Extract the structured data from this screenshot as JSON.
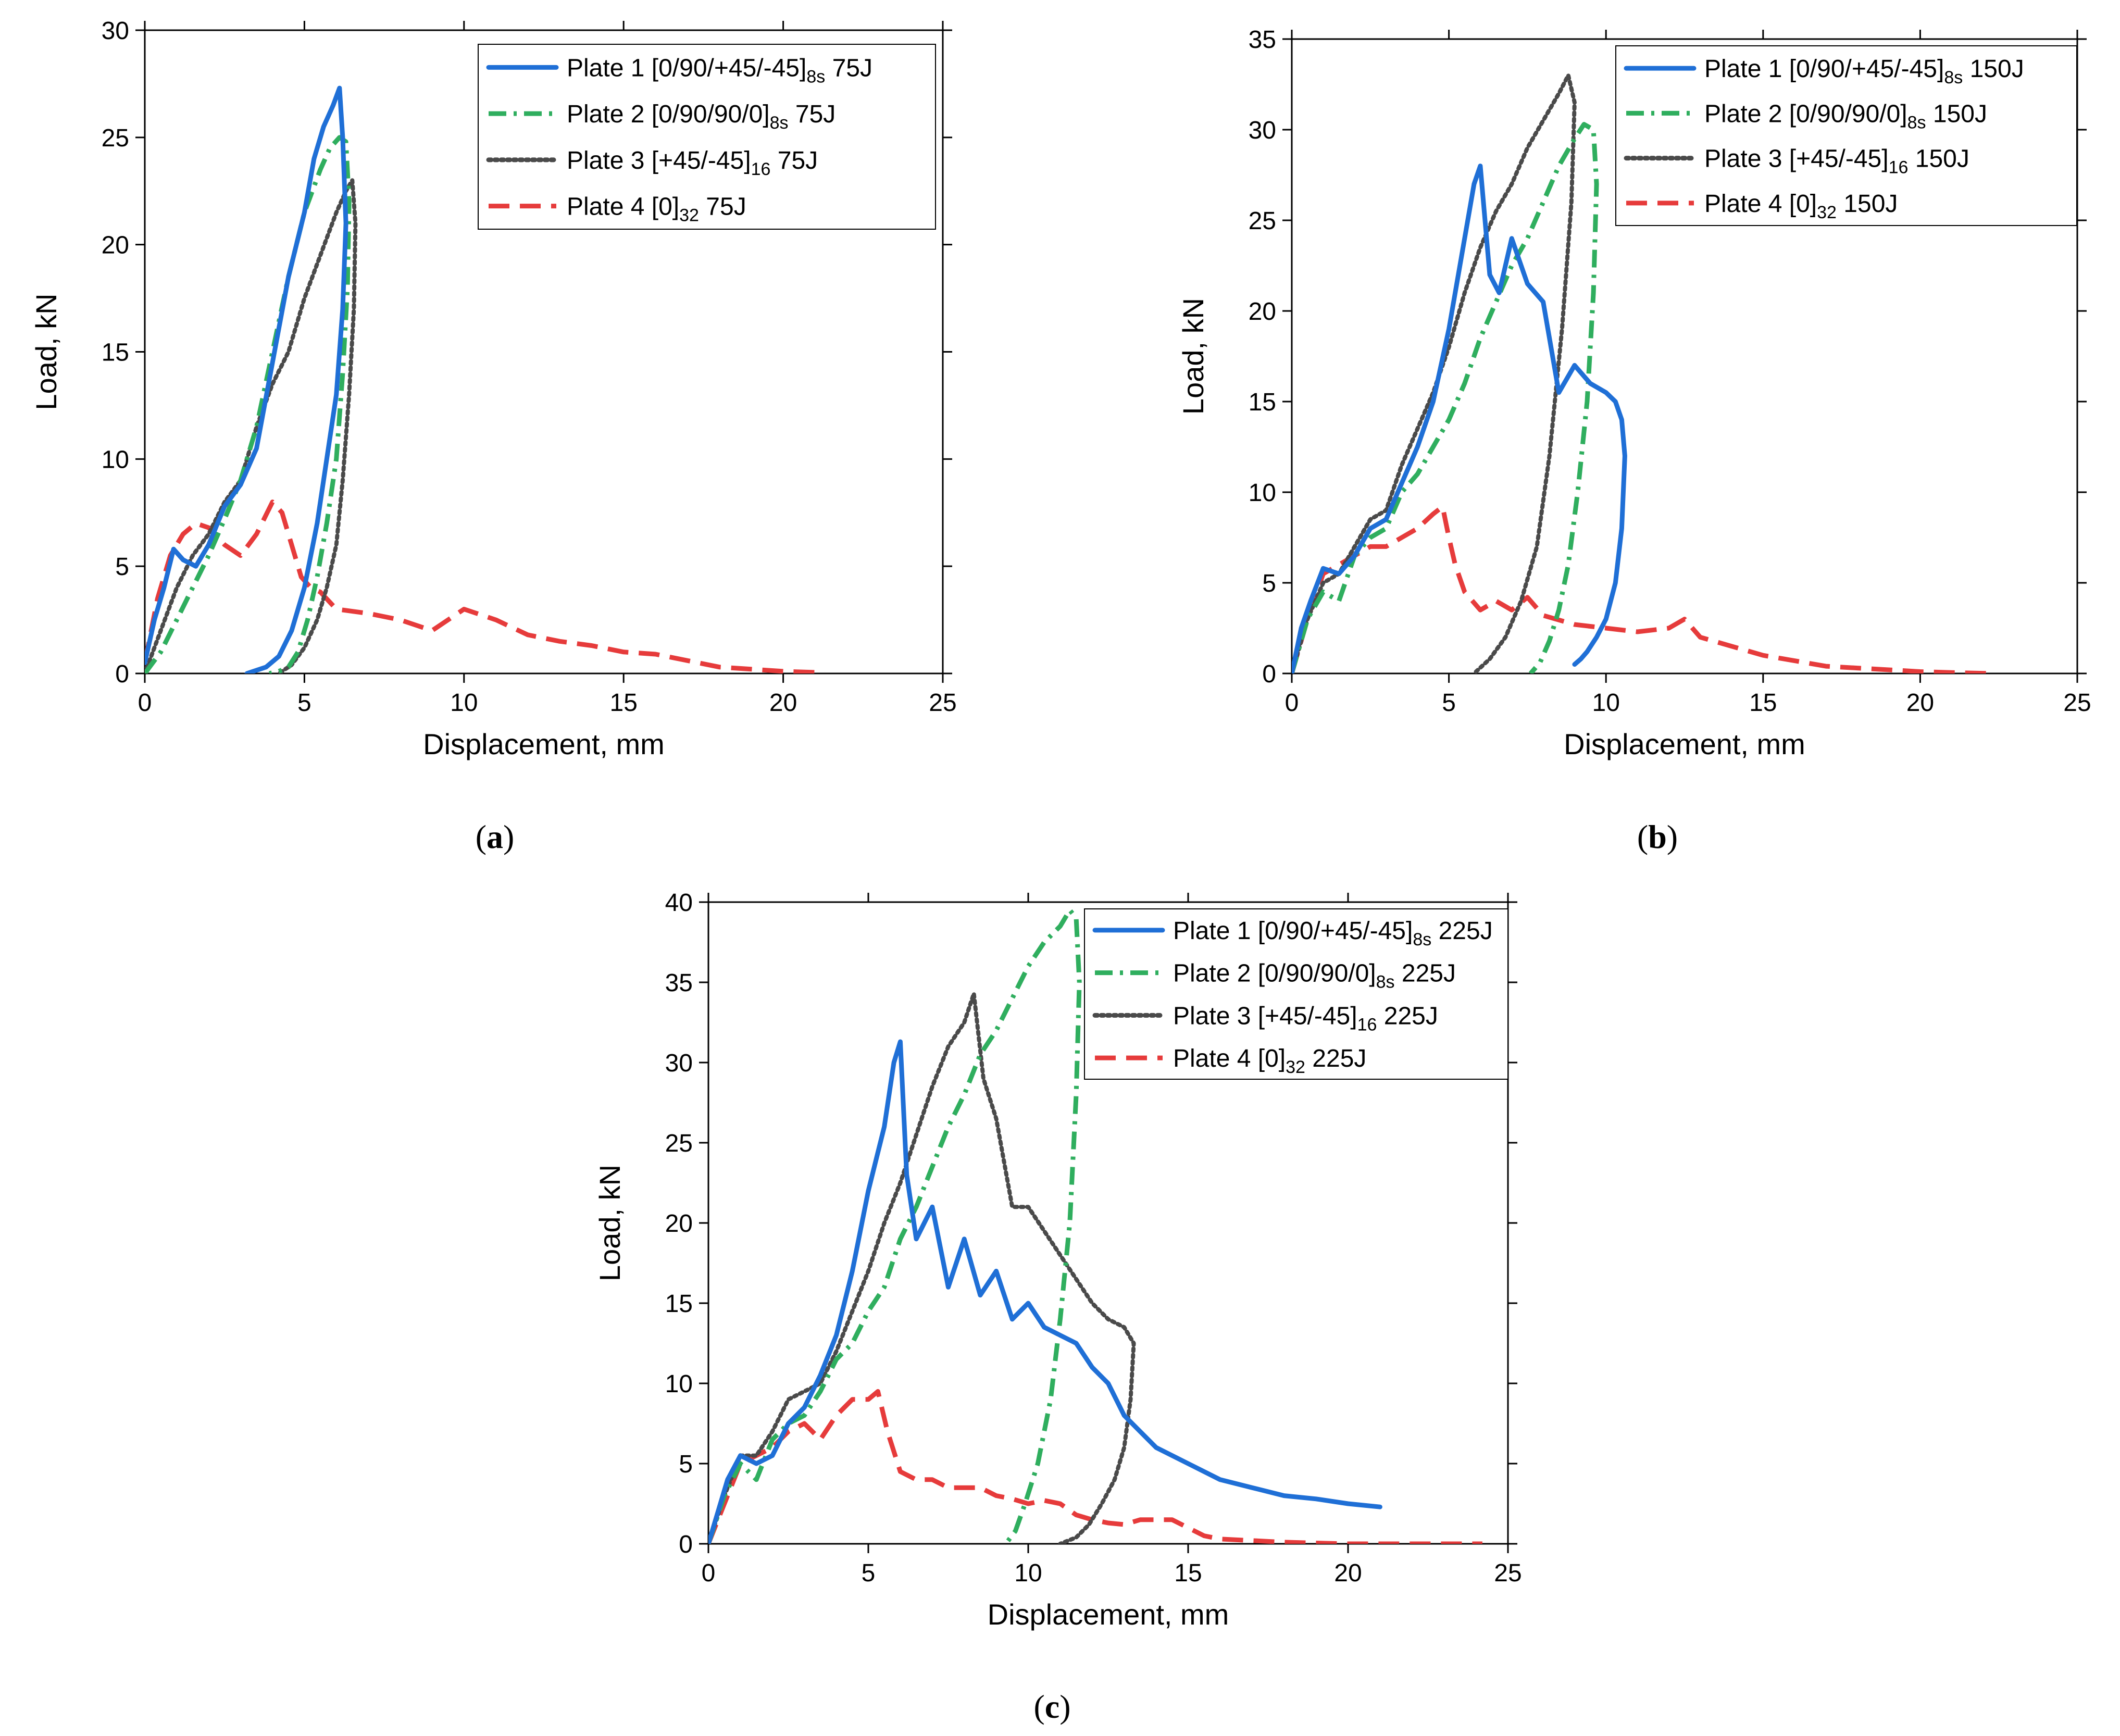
{
  "figure": {
    "captions": [
      "a",
      "b",
      "c"
    ]
  },
  "colors": {
    "plate1": "#1f6fd6",
    "plate2": "#2fae5e",
    "plate3": "#4a4a4a",
    "plate4": "#e63b3b",
    "axis": "#000000"
  },
  "chart_data": [
    {
      "panel": "a",
      "type": "line",
      "xlabel": "Displacement, mm",
      "ylabel": "Load, kN",
      "xlim": [
        0,
        25
      ],
      "ylim": [
        0,
        30
      ],
      "xticks": [
        0,
        5,
        10,
        15,
        20,
        25
      ],
      "yticks": [
        0,
        5,
        10,
        15,
        20,
        25,
        30
      ],
      "legend_position": "top-right",
      "series": [
        {
          "key": "plate1",
          "name": "Plate 1 [0/90/+45/-45]",
          "sub": "8s",
          "suffix": " 75J",
          "dash": "solid",
          "x": [
            0,
            0.3,
            0.6,
            0.9,
            1.2,
            1.6,
            2.0,
            2.5,
            3.0,
            3.5,
            4.0,
            4.5,
            5.0,
            5.3,
            5.6,
            5.9,
            6.1,
            6.2,
            6.3,
            6.2,
            6.0,
            5.7,
            5.4,
            5.0,
            4.6,
            4.2,
            3.8,
            3.4,
            3.2
          ],
          "y": [
            0.5,
            2.5,
            4.0,
            5.8,
            5.3,
            5.0,
            6.0,
            7.8,
            8.8,
            10.5,
            14.5,
            18.5,
            21.5,
            24.0,
            25.5,
            26.5,
            27.3,
            25.0,
            21.0,
            17.0,
            13.0,
            10.0,
            7.0,
            4.0,
            2.0,
            0.8,
            0.3,
            0.1,
            0
          ]
        },
        {
          "key": "plate2",
          "name": "Plate 2 [0/90/90/0]",
          "sub": "8s",
          "suffix": " 75J",
          "dash": "dashdot",
          "x": [
            0,
            0.5,
            1.0,
            1.5,
            2.0,
            2.5,
            3.0,
            3.5,
            4.0,
            4.5,
            5.0,
            5.5,
            5.8,
            6.1,
            6.3,
            6.4,
            6.35,
            6.2,
            6.0,
            5.7,
            5.4,
            5.1,
            4.8,
            4.5,
            4.2,
            3.9
          ],
          "y": [
            0,
            1.0,
            2.5,
            4.0,
            5.5,
            7.2,
            9.0,
            11.5,
            15.0,
            18.5,
            21.5,
            23.5,
            24.5,
            25.0,
            24.8,
            22.0,
            18.0,
            14.0,
            10.0,
            7.0,
            4.5,
            2.5,
            1.0,
            0.3,
            0.1,
            0
          ]
        },
        {
          "key": "plate3",
          "name": "Plate 3 [+45/-45]",
          "sub": "16",
          "suffix": " 75J",
          "dash": "dotted",
          "x": [
            0,
            0.5,
            1.0,
            1.5,
            2.0,
            2.5,
            3.0,
            3.5,
            4.0,
            4.5,
            5.0,
            5.5,
            6.0,
            6.3,
            6.5,
            6.6,
            6.55,
            6.4,
            6.2,
            6.0,
            5.7,
            5.4,
            5.0,
            4.6,
            4.2
          ],
          "y": [
            0,
            2.0,
            4.0,
            5.5,
            6.5,
            8.0,
            9.0,
            11.5,
            13.5,
            15.0,
            17.5,
            19.5,
            21.5,
            22.5,
            23.0,
            21.0,
            17.0,
            13.0,
            9.0,
            6.0,
            4.0,
            2.5,
            1.2,
            0.4,
            0
          ]
        },
        {
          "key": "plate4",
          "name": "Plate 4 [0]",
          "sub": "32",
          "suffix": " 75J",
          "dash": "dashed",
          "x": [
            0,
            0.4,
            0.8,
            1.2,
            1.6,
            2.0,
            2.5,
            3.0,
            3.5,
            4.0,
            4.3,
            4.6,
            4.9,
            5.2,
            5.5,
            6,
            7,
            8,
            9,
            10,
            11,
            12,
            13,
            14,
            15,
            16,
            17,
            18,
            19,
            20,
            21,
            21.3
          ],
          "y": [
            0.5,
            3.5,
            5.5,
            6.5,
            7.0,
            6.8,
            6.0,
            5.5,
            6.5,
            8.0,
            7.5,
            6.0,
            4.5,
            4.0,
            3.8,
            3.0,
            2.8,
            2.5,
            2.0,
            3.0,
            2.5,
            1.8,
            1.5,
            1.3,
            1.0,
            0.9,
            0.6,
            0.3,
            0.2,
            0.1,
            0.05,
            0
          ]
        }
      ]
    },
    {
      "panel": "b",
      "type": "line",
      "xlabel": "Displacement, mm",
      "ylabel": "Load, kN",
      "xlim": [
        0,
        25
      ],
      "ylim": [
        0,
        35
      ],
      "xticks": [
        0,
        5,
        10,
        15,
        20,
        25
      ],
      "yticks": [
        0,
        5,
        10,
        15,
        20,
        25,
        30,
        35
      ],
      "legend_position": "top-right",
      "series": [
        {
          "key": "plate1",
          "name": "Plate 1 [0/90/+45/-45]",
          "sub": "8s",
          "suffix": " 150J",
          "dash": "solid",
          "x": [
            0,
            0.3,
            0.6,
            1.0,
            1.5,
            2.0,
            2.5,
            3.0,
            3.5,
            4.0,
            4.5,
            5.0,
            5.5,
            5.8,
            6.0,
            6.3,
            6.6,
            7.0,
            7.5,
            8.0,
            8.5,
            9.0,
            9.5,
            10.0,
            10.3,
            10.5,
            10.6,
            10.5,
            10.3,
            10.0,
            9.7,
            9.4,
            9.2,
            9.0
          ],
          "y": [
            0,
            2.5,
            4.0,
            5.8,
            5.5,
            6.5,
            8.0,
            8.5,
            10.5,
            12.5,
            15.0,
            19.0,
            24.0,
            27.0,
            28.0,
            22.0,
            21.0,
            24.0,
            21.5,
            20.5,
            15.5,
            17.0,
            16.0,
            15.5,
            15.0,
            14.0,
            12.0,
            8.0,
            5.0,
            3.0,
            2.0,
            1.2,
            0.8,
            0.5
          ]
        },
        {
          "key": "plate2",
          "name": "Plate 2 [0/90/90/0]",
          "sub": "8s",
          "suffix": " 150J",
          "dash": "dashdot",
          "x": [
            0,
            0.5,
            1.0,
            1.5,
            2.0,
            2.5,
            3.0,
            3.5,
            4.0,
            4.5,
            5.0,
            5.5,
            6.0,
            6.5,
            7.0,
            7.5,
            8.0,
            8.5,
            9.0,
            9.3,
            9.6,
            9.7,
            9.6,
            9.4,
            9.1,
            8.8,
            8.5,
            8.2,
            7.9,
            7.6
          ],
          "y": [
            0,
            3.0,
            4.5,
            4.0,
            6.5,
            7.5,
            8.0,
            10.0,
            11.0,
            12.5,
            14.0,
            16.0,
            18.5,
            20.5,
            22.5,
            24.0,
            26.0,
            28.0,
            29.5,
            30.3,
            30.0,
            27.0,
            21.0,
            15.0,
            10.0,
            6.0,
            3.5,
            1.8,
            0.6,
            0
          ]
        },
        {
          "key": "plate3",
          "name": "Plate 3 [+45/-45]",
          "sub": "16",
          "suffix": " 150J",
          "dash": "dotted",
          "x": [
            0,
            0.5,
            1.0,
            1.5,
            2.0,
            2.5,
            3.0,
            3.5,
            4.0,
            4.5,
            5.0,
            5.5,
            6.0,
            6.5,
            7.0,
            7.5,
            8.0,
            8.5,
            8.8,
            9.0,
            8.9,
            8.6,
            8.2,
            7.8,
            7.3,
            6.8,
            6.3,
            5.8
          ],
          "y": [
            0,
            3.0,
            5.0,
            5.5,
            7.0,
            8.5,
            9.0,
            11.5,
            13.5,
            15.5,
            18.0,
            21.0,
            23.5,
            25.5,
            27.0,
            29.0,
            30.5,
            32.0,
            33.0,
            31.5,
            26.0,
            19.0,
            12.0,
            7.0,
            4.0,
            2.0,
            0.8,
            0
          ]
        },
        {
          "key": "plate4",
          "name": "Plate 4 [0]",
          "sub": "32",
          "suffix": " 150J",
          "dash": "dashed",
          "x": [
            0,
            0.5,
            1.0,
            1.5,
            2.0,
            2.5,
            3.0,
            3.5,
            4.0,
            4.5,
            4.8,
            5.0,
            5.2,
            5.5,
            6.0,
            6.5,
            7.0,
            7.5,
            8.0,
            9.0,
            10.0,
            11.0,
            12.0,
            12.5,
            13.0,
            14.0,
            15.0,
            16.0,
            17.0,
            18.0,
            19.0,
            20.0,
            21.0,
            22.3
          ],
          "y": [
            0,
            3.0,
            5.5,
            6.0,
            6.5,
            7.0,
            7.0,
            7.5,
            8.0,
            8.8,
            9.2,
            7.5,
            6.0,
            4.5,
            3.5,
            4.0,
            3.5,
            4.2,
            3.2,
            2.7,
            2.5,
            2.3,
            2.5,
            3.0,
            2.0,
            1.5,
            1.0,
            0.7,
            0.4,
            0.3,
            0.2,
            0.1,
            0.05,
            0
          ]
        }
      ]
    },
    {
      "panel": "c",
      "type": "line",
      "xlabel": "Displacement, mm",
      "ylabel": "Load, kN",
      "xlim": [
        0,
        25
      ],
      "ylim": [
        0,
        40
      ],
      "xticks": [
        0,
        5,
        10,
        15,
        20,
        25
      ],
      "yticks": [
        0,
        5,
        10,
        15,
        20,
        25,
        30,
        35,
        40
      ],
      "legend_position": "top-right",
      "series": [
        {
          "key": "plate1",
          "name": "Plate 1 [0/90/+45/-45]",
          "sub": "8s",
          "suffix": " 225J",
          "dash": "solid",
          "x": [
            0,
            0.3,
            0.6,
            1.0,
            1.5,
            2.0,
            2.5,
            3.0,
            3.5,
            4.0,
            4.5,
            5.0,
            5.5,
            5.8,
            6.0,
            6.2,
            6.5,
            7.0,
            7.5,
            8.0,
            8.5,
            9.0,
            9.5,
            10.0,
            10.5,
            11.0,
            11.5,
            12.0,
            12.5,
            13.0,
            13.5,
            14.0,
            15.0,
            16.0,
            17.0,
            18.0,
            19.0,
            20.0,
            21.0
          ],
          "y": [
            0,
            2.0,
            4.0,
            5.5,
            5.0,
            5.5,
            7.5,
            8.5,
            10.5,
            13.0,
            17.0,
            22.0,
            26.0,
            30.0,
            31.3,
            23.0,
            19.0,
            21.0,
            16.0,
            19.0,
            15.5,
            17.0,
            14.0,
            15.0,
            13.5,
            13.0,
            12.5,
            11.0,
            10.0,
            8.0,
            7.0,
            6.0,
            5.0,
            4.0,
            3.5,
            3.0,
            2.8,
            2.5,
            2.3
          ]
        },
        {
          "key": "plate2",
          "name": "Plate 2 [0/90/90/0]",
          "sub": "8s",
          "suffix": " 225J",
          "dash": "dashdot",
          "x": [
            0,
            0.5,
            1.0,
            1.5,
            2.0,
            2.5,
            3.0,
            3.5,
            4.0,
            4.5,
            5.0,
            5.5,
            6.0,
            6.5,
            7.0,
            7.5,
            8.0,
            8.5,
            9.0,
            9.5,
            10.0,
            10.5,
            11.0,
            11.3,
            11.5,
            11.6,
            11.5,
            11.3,
            11.0,
            10.7,
            10.3,
            9.9,
            9.6,
            9.3
          ],
          "y": [
            0,
            3.0,
            5.0,
            4.0,
            6.5,
            7.5,
            8.0,
            9.5,
            11.5,
            12.5,
            14.5,
            16.0,
            19.0,
            21.0,
            23.5,
            26.0,
            28.0,
            30.5,
            32.0,
            34.0,
            36.0,
            37.5,
            38.5,
            39.5,
            39.0,
            35.0,
            28.0,
            20.0,
            14.0,
            9.0,
            5.0,
            2.5,
            0.8,
            0
          ]
        },
        {
          "key": "plate3",
          "name": "Plate 3 [+45/-45]",
          "sub": "16",
          "suffix": " 225J",
          "dash": "dotted",
          "x": [
            0,
            0.5,
            1.0,
            1.5,
            2.0,
            2.5,
            3.0,
            3.5,
            4.0,
            4.5,
            5.0,
            5.5,
            6.0,
            6.5,
            7.0,
            7.5,
            8.0,
            8.3,
            8.6,
            9.0,
            9.5,
            10.0,
            10.5,
            11.0,
            11.5,
            12.0,
            12.5,
            13.0,
            13.3,
            13.2,
            13.0,
            12.7,
            12.3,
            11.9,
            11.5,
            11.0
          ],
          "y": [
            0,
            3.0,
            5.5,
            5.5,
            7.0,
            9.0,
            9.5,
            10.0,
            12.0,
            14.5,
            17.0,
            20.0,
            22.5,
            25.5,
            28.5,
            31.0,
            32.5,
            34.3,
            29.0,
            26.5,
            21.0,
            21.0,
            19.5,
            18.0,
            16.5,
            15.0,
            14.0,
            13.5,
            12.5,
            9.0,
            6.0,
            4.0,
            2.5,
            1.2,
            0.4,
            0
          ]
        },
        {
          "key": "plate4",
          "name": "Plate 4 [0]",
          "sub": "32",
          "suffix": " 225J",
          "dash": "dashed",
          "x": [
            0,
            0.5,
            1.0,
            1.5,
            2.0,
            2.5,
            3.0,
            3.5,
            4.0,
            4.5,
            5.0,
            5.3,
            5.6,
            6.0,
            6.5,
            7.0,
            7.5,
            8.0,
            8.5,
            9.0,
            9.5,
            10.0,
            10.5,
            11.0,
            11.5,
            12.0,
            12.5,
            13.0,
            13.5,
            14.0,
            14.5,
            15.0,
            15.5,
            16.0,
            17.0,
            18.0,
            19.0,
            20.0,
            21.0,
            22.0,
            23.0,
            24.2
          ],
          "y": [
            0,
            2.5,
            5.0,
            5.5,
            6.0,
            7.0,
            7.5,
            6.5,
            8.0,
            9.0,
            9.0,
            9.5,
            7.0,
            4.5,
            4.0,
            4.0,
            3.5,
            3.5,
            3.5,
            3.0,
            2.8,
            2.5,
            2.7,
            2.5,
            1.8,
            1.5,
            1.3,
            1.2,
            1.5,
            1.5,
            1.5,
            1.0,
            0.5,
            0.3,
            0.2,
            0.1,
            0.05,
            0,
            0,
            0,
            0,
            0
          ]
        }
      ]
    }
  ]
}
